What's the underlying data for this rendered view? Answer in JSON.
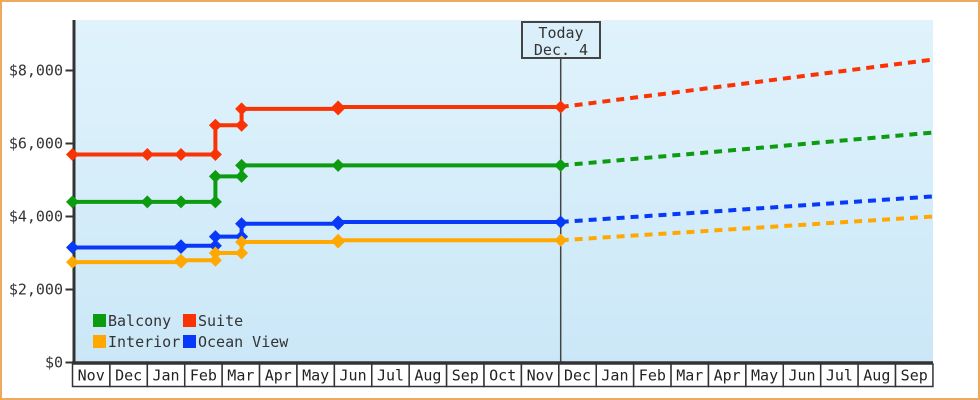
{
  "today_box": {
    "line1": "Today",
    "line2": "Dec. 4"
  },
  "legend": {
    "items": [
      {
        "label": "Balcony",
        "color": "#0d9b11"
      },
      {
        "label": "Suite",
        "color": "#fa3305"
      },
      {
        "label": "Interior",
        "color": "#ffa802"
      },
      {
        "label": "Ocean View",
        "color": "#0839f8"
      }
    ]
  },
  "chart_data": {
    "type": "line",
    "title": "",
    "xlabel": "",
    "ylabel": "",
    "grid": false,
    "legend_position": "bottom-left",
    "background": {
      "plot_top_color": "#e0f3fc",
      "plot_bottom_color": "#cbe7f7",
      "page_border_color": "#eda95e"
    },
    "x_axis": {
      "months": [
        "Nov",
        "Dec",
        "Jan",
        "Feb",
        "Mar",
        "Apr",
        "May",
        "Jun",
        "Jul",
        "Aug",
        "Sep",
        "Oct",
        "Nov",
        "Dec",
        "Jan",
        "Feb",
        "Mar",
        "Apr",
        "May",
        "Jun",
        "Jul",
        "Aug",
        "Sep"
      ]
    },
    "y_axis": {
      "min": 0,
      "max": 9400,
      "ticks": [
        {
          "label": "$8,000",
          "value": 8000
        },
        {
          "label": "$6,000",
          "value": 6000
        },
        {
          "label": "$4,000",
          "value": 4000
        },
        {
          "label": "$2,000",
          "value": 2000
        },
        {
          "label": "$0",
          "value": 0
        }
      ]
    },
    "today": {
      "month_index": 13.05,
      "label_line1": "Today",
      "label_line2": "Dec. 4"
    },
    "series": [
      {
        "name": "Suite",
        "color": "#fa3305",
        "points": [
          [
            0,
            5700
          ],
          [
            2.0,
            5700
          ],
          [
            2.9,
            5700
          ],
          [
            3.82,
            5700
          ],
          [
            3.82,
            6500
          ],
          [
            4.52,
            6500
          ],
          [
            4.52,
            6950
          ],
          [
            7.1,
            6950
          ],
          [
            7.1,
            7000
          ],
          [
            13.05,
            7000
          ]
        ],
        "forecast": {
          "end_month_index": 23,
          "end_value": 8300
        }
      },
      {
        "name": "Balcony",
        "color": "#0d9b11",
        "points": [
          [
            0,
            4400
          ],
          [
            2.0,
            4400
          ],
          [
            2.9,
            4400
          ],
          [
            3.82,
            4400
          ],
          [
            3.82,
            5100
          ],
          [
            4.52,
            5100
          ],
          [
            4.52,
            5400
          ],
          [
            7.1,
            5400
          ],
          [
            13.05,
            5400
          ]
        ],
        "forecast": {
          "end_month_index": 23,
          "end_value": 6300
        }
      },
      {
        "name": "Ocean View",
        "color": "#0839f8",
        "points": [
          [
            0,
            3150
          ],
          [
            2.9,
            3150
          ],
          [
            2.9,
            3200
          ],
          [
            3.82,
            3200
          ],
          [
            3.82,
            3450
          ],
          [
            4.52,
            3450
          ],
          [
            4.52,
            3800
          ],
          [
            7.1,
            3800
          ],
          [
            7.1,
            3850
          ],
          [
            13.05,
            3850
          ]
        ],
        "forecast": {
          "end_month_index": 23,
          "end_value": 4550
        }
      },
      {
        "name": "Interior",
        "color": "#ffa802",
        "points": [
          [
            0,
            2750
          ],
          [
            2.9,
            2750
          ],
          [
            2.9,
            2800
          ],
          [
            3.82,
            2800
          ],
          [
            3.82,
            3000
          ],
          [
            4.52,
            3000
          ],
          [
            4.52,
            3300
          ],
          [
            7.1,
            3300
          ],
          [
            7.1,
            3350
          ],
          [
            13.05,
            3350
          ]
        ],
        "forecast": {
          "end_month_index": 23,
          "end_value": 4000
        }
      }
    ]
  }
}
